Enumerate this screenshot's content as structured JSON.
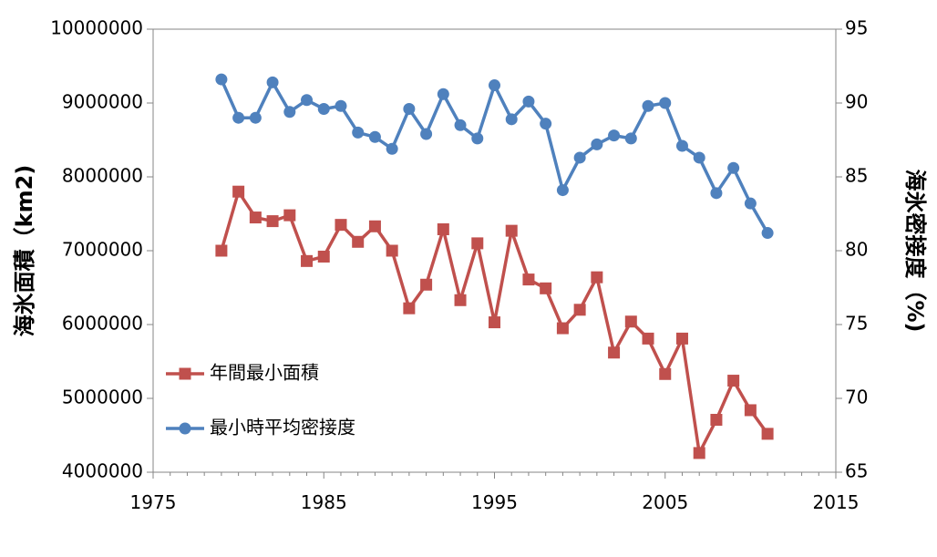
{
  "chart_data": {
    "type": "line",
    "title": "",
    "xlabel": "",
    "ylabel_left": "海氷面積（km2)",
    "ylabel_right": "海氷密接度（%)",
    "xlim": [
      1975,
      2015
    ],
    "x_ticks": [
      1975,
      1985,
      1995,
      2005,
      2015
    ],
    "x_tick_labels": [
      "1975",
      "1985",
      "1995",
      "2005",
      "2015"
    ],
    "ylim_left": [
      4000000,
      10000000
    ],
    "y_left_ticks": [
      4000000,
      5000000,
      6000000,
      7000000,
      8000000,
      9000000,
      10000000
    ],
    "y_left_tick_labels": [
      "4000000",
      "5000000",
      "6000000",
      "7000000",
      "8000000",
      "9000000",
      "10000000"
    ],
    "ylim_right": [
      65,
      95
    ],
    "y_right_ticks": [
      65,
      70,
      75,
      80,
      85,
      90,
      95
    ],
    "y_right_tick_labels": [
      "65",
      "70",
      "75",
      "80",
      "85",
      "90",
      "95"
    ],
    "grid": false,
    "legend_position": "left",
    "x": [
      1979,
      1980,
      1981,
      1982,
      1983,
      1984,
      1985,
      1986,
      1987,
      1988,
      1989,
      1990,
      1991,
      1992,
      1993,
      1994,
      1995,
      1996,
      1997,
      1998,
      1999,
      2000,
      2001,
      2002,
      2003,
      2004,
      2005,
      2006,
      2007,
      2008,
      2009,
      2010,
      2011
    ],
    "series": [
      {
        "name": "年間最小面積",
        "axis": "left",
        "marker": "square",
        "color": "#C0504D",
        "values": [
          7000000,
          7800000,
          7450000,
          7400000,
          7480000,
          6860000,
          6920000,
          7350000,
          7120000,
          7330000,
          7000000,
          6220000,
          6540000,
          7290000,
          6330000,
          7100000,
          6030000,
          7270000,
          6610000,
          6490000,
          5950000,
          6200000,
          6640000,
          5620000,
          6040000,
          5810000,
          5330000,
          5810000,
          4260000,
          4710000,
          5240000,
          4840000,
          4520000
        ]
      },
      {
        "name": "最小時平均密接度",
        "axis": "right",
        "marker": "circle",
        "color": "#4F81BD",
        "values": [
          91.6,
          89.0,
          89.0,
          91.4,
          89.4,
          90.2,
          89.6,
          89.8,
          88.0,
          87.7,
          86.9,
          89.6,
          87.9,
          90.6,
          88.5,
          87.6,
          91.2,
          88.9,
          90.1,
          88.6,
          84.1,
          86.3,
          87.2,
          87.8,
          87.6,
          89.8,
          90.0,
          87.1,
          86.3,
          83.9,
          85.6,
          83.2,
          81.2
        ]
      }
    ]
  }
}
